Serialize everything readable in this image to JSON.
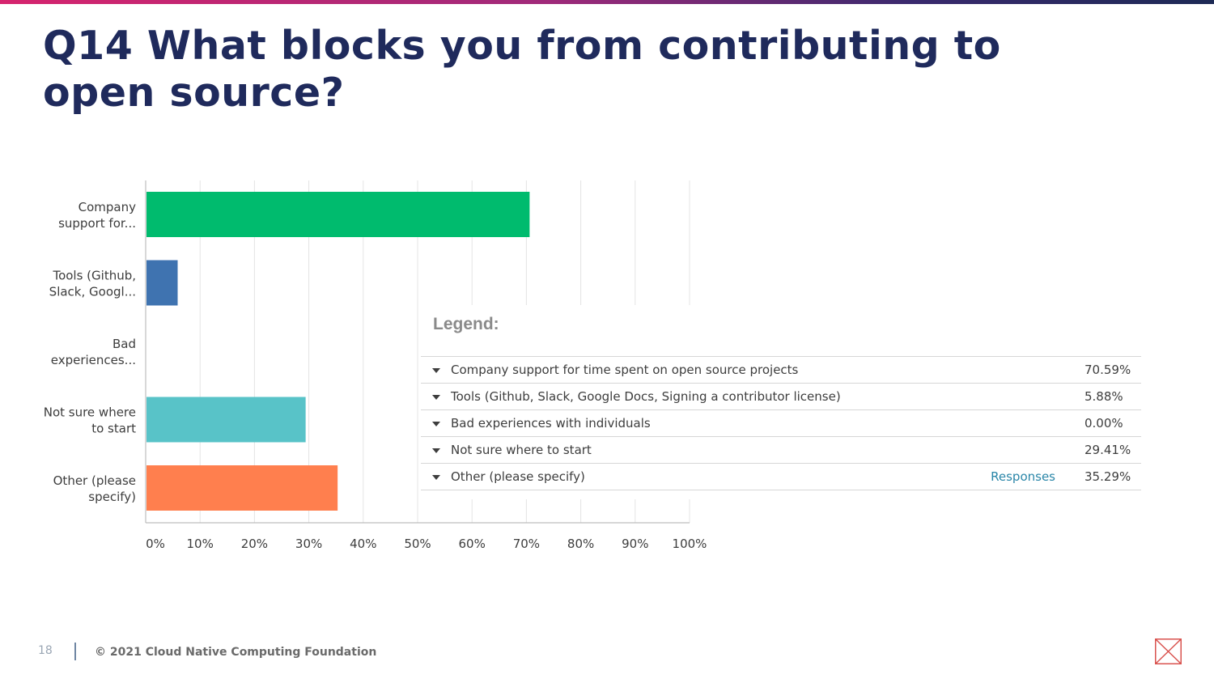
{
  "slide": {
    "title": "Q14 What blocks you from contributing to open source?",
    "page_number": "18",
    "copyright": "© 2021 Cloud Native Computing Foundation",
    "brand_color": "#1f2a5c"
  },
  "chart_data": {
    "type": "bar",
    "orientation": "horizontal",
    "categories": [
      [
        "Company",
        "support for..."
      ],
      [
        "Tools (Github,",
        "Slack, Googl..."
      ],
      [
        "Bad",
        "experiences..."
      ],
      [
        "Not sure where",
        "to start"
      ],
      [
        "Other (please",
        "specify)"
      ]
    ],
    "values": [
      70.59,
      5.88,
      0.0,
      29.41,
      35.29
    ],
    "colors": [
      "#00bb6e",
      "#3f73b0",
      "#7fbf3f",
      "#58c3c8",
      "#ff7f4e"
    ],
    "xlim": [
      0,
      100
    ],
    "xticks": [
      "0%",
      "10%",
      "20%",
      "30%",
      "40%",
      "50%",
      "60%",
      "70%",
      "80%",
      "90%",
      "100%"
    ],
    "grid": true,
    "legend": {
      "title": "Legend:",
      "placement": "bottom-right",
      "responses_label": "Responses",
      "items": [
        {
          "label": "Company support for time spent on open source projects",
          "percent": "70.59%",
          "responses": ""
        },
        {
          "label": "Tools (Github, Slack, Google Docs, Signing a contributor license)",
          "percent": "5.88%",
          "responses": ""
        },
        {
          "label": "Bad experiences with individuals",
          "percent": "0.00%",
          "responses": ""
        },
        {
          "label": "Not sure where to start",
          "percent": "29.41%",
          "responses": ""
        },
        {
          "label": "Other (please specify)",
          "percent": "35.29%",
          "responses": "Responses"
        }
      ]
    }
  }
}
